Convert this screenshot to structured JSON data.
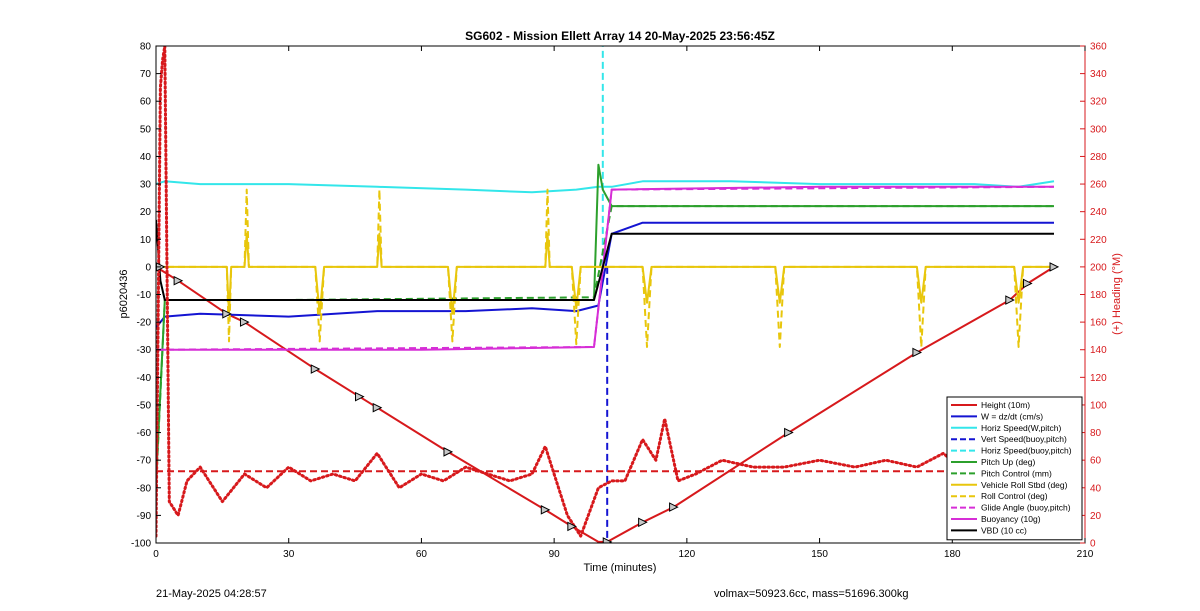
{
  "chart_data": {
    "type": "line",
    "title": "SG602 - Mission Ellett Array 14 20-May-2025 23:56:45Z",
    "xlabel": "Time (minutes)",
    "ylabel": "p6020436",
    "y2label": "(+) Heading (°M)",
    "xlim": [
      0,
      210
    ],
    "ylim": [
      -100,
      80
    ],
    "y2lim": [
      0,
      360
    ],
    "xticks": [
      0,
      30,
      60,
      90,
      120,
      150,
      180,
      210
    ],
    "yticks": [
      80,
      70,
      60,
      50,
      40,
      30,
      20,
      10,
      0,
      -10,
      -20,
      -30,
      -40,
      -50,
      -60,
      -70,
      -80,
      -90,
      -100
    ],
    "y2ticks": [
      360,
      340,
      320,
      300,
      280,
      260,
      240,
      220,
      200,
      180,
      160,
      140,
      120,
      100,
      80,
      60,
      40,
      20,
      0
    ],
    "grid": false,
    "legend_position": "bottom-right",
    "series": [
      {
        "name": "Height (10m)",
        "color": "#d7191c",
        "style": "solid",
        "x": [
          0,
          5,
          16,
          20,
          36,
          46,
          50,
          66,
          88,
          94,
          100,
          101,
          102,
          110,
          117,
          143,
          172,
          193,
          197,
          203
        ],
        "y": [
          0,
          -5,
          -17,
          -20,
          -37,
          -47,
          -51,
          -67,
          -88,
          -94,
          -99.6,
          -99.6,
          -99.6,
          -92.5,
          -87,
          -60,
          -31,
          -12,
          -6,
          0
        ]
      },
      {
        "name": "W = dz/dt (cm/s)",
        "color": "#1414d2",
        "style": "solid",
        "x": [
          0,
          2,
          10,
          30,
          50,
          70,
          85,
          95,
          100,
          103,
          110,
          130,
          150,
          170,
          185,
          195,
          203
        ],
        "y": [
          -22,
          -18,
          -17,
          -18,
          -16,
          -16,
          -15,
          -16,
          -14,
          12,
          16,
          16,
          16,
          16,
          16,
          16,
          16
        ]
      },
      {
        "name": "Horiz Speed(W,pitch)",
        "color": "#33e6ea",
        "style": "solid",
        "x": [
          0,
          2,
          10,
          30,
          50,
          70,
          85,
          95,
          100,
          103,
          110,
          130,
          150,
          170,
          185,
          195,
          203
        ],
        "y": [
          30,
          31,
          30,
          30,
          29,
          28,
          27,
          28,
          29,
          29,
          31,
          31,
          30,
          30,
          30,
          29,
          31
        ]
      },
      {
        "name": "Vert Speed(buoy,pitch)",
        "color": "#1414d2",
        "style": "dashed",
        "x": [
          102,
          102
        ],
        "y": [
          0,
          -100
        ]
      },
      {
        "name": "Horiz Speed(buoy,pitch)",
        "color": "#33e6ea",
        "style": "dashed",
        "x": [
          101,
          101
        ],
        "y": [
          0,
          80
        ]
      },
      {
        "name": "Pitch Up (deg)",
        "color": "#2ca02c",
        "style": "solid",
        "x": [
          0,
          2,
          10,
          30,
          60,
          90,
          99,
          100,
          101,
          103,
          120,
          160,
          203
        ],
        "y": [
          -78,
          -12,
          -12,
          -12,
          -12,
          -12,
          -12,
          37,
          28,
          22,
          22,
          22,
          22
        ]
      },
      {
        "name": "Pitch Control (mm)",
        "color": "#2ca02c",
        "style": "dashed",
        "x": [
          0,
          2,
          30,
          99,
          103,
          203
        ],
        "y": [
          -80,
          -12,
          -12,
          -11,
          22,
          22
        ]
      },
      {
        "name": "Vehicle Roll Stbd (deg)",
        "color": "#e8c60c",
        "style": "solid",
        "x": [
          0,
          16,
          16.5,
          17,
          20,
          20.5,
          21,
          36,
          37,
          38,
          50,
          50.5,
          51,
          66,
          67,
          68,
          88,
          88.5,
          89,
          94,
          95,
          96,
          100,
          103,
          110,
          111,
          112,
          140,
          141,
          142,
          172,
          173,
          174,
          194,
          195,
          196,
          203
        ],
        "y": [
          0,
          0,
          -17,
          0,
          0,
          12,
          0,
          0,
          -17,
          0,
          0,
          12,
          0,
          0,
          -17,
          0,
          0,
          12,
          0,
          0,
          -15,
          0,
          0,
          0,
          0,
          -13,
          0,
          0,
          -13,
          0,
          0,
          -13,
          0,
          0,
          -13,
          0,
          0
        ]
      },
      {
        "name": "Roll Control (deg)",
        "color": "#e8c60c",
        "style": "dashed",
        "x": [
          0,
          16,
          16.5,
          17,
          20,
          20.5,
          21,
          36,
          37,
          38,
          50,
          50.5,
          51,
          66,
          67,
          68,
          88,
          88.5,
          89,
          94,
          95,
          96,
          103,
          110,
          111,
          112,
          140,
          141,
          142,
          172,
          173,
          174,
          194,
          195,
          196,
          203
        ],
        "y": [
          0,
          0,
          -27,
          0,
          0,
          28,
          0,
          0,
          -27,
          0,
          0,
          28,
          0,
          0,
          -27,
          0,
          0,
          28,
          0,
          0,
          -28,
          0,
          0,
          0,
          -29,
          0,
          0,
          -29,
          0,
          0,
          -29,
          0,
          0,
          -29,
          0,
          0
        ]
      },
      {
        "name": "Glide Angle (buoy,pitch)",
        "color": "#d62ed6",
        "style": "dashed",
        "x": [
          0,
          2,
          99,
          103,
          203
        ],
        "y": [
          -30,
          -30,
          -29,
          28,
          29
        ]
      },
      {
        "name": "Buoyancy (10g)",
        "color": "#d62ed6",
        "style": "solid",
        "x": [
          0,
          2,
          30,
          60,
          99,
          103,
          150,
          203
        ],
        "y": [
          -30,
          -30,
          -30,
          -30,
          -29,
          28,
          29,
          29
        ]
      },
      {
        "name": "VBD (10 cc)",
        "color": "#000000",
        "style": "solid",
        "x": [
          0,
          1,
          2,
          99,
          103,
          203
        ],
        "y": [
          17,
          -5,
          -12,
          -12,
          12,
          12
        ]
      },
      {
        "name": "Heading",
        "color": "#d7191c",
        "style": "dotted",
        "axis": "right",
        "x": [
          0,
          1,
          1.5,
          2,
          3,
          5,
          7,
          10,
          13,
          15,
          20,
          25,
          30,
          35,
          40,
          45,
          50,
          55,
          60,
          65,
          70,
          75,
          80,
          85,
          88,
          90,
          93,
          96,
          100,
          103,
          106,
          110,
          113,
          115,
          118,
          122,
          128,
          135,
          142,
          150,
          158,
          165,
          172,
          178,
          185,
          190,
          195,
          198,
          200,
          203
        ],
        "y": [
          5,
          330,
          350,
          360,
          30,
          20,
          45,
          55,
          40,
          30,
          50,
          40,
          55,
          45,
          50,
          45,
          65,
          40,
          50,
          45,
          55,
          50,
          45,
          50,
          70,
          50,
          20,
          5,
          40,
          45,
          45,
          75,
          60,
          90,
          45,
          50,
          60,
          55,
          55,
          60,
          55,
          60,
          55,
          65,
          45,
          50,
          40,
          80,
          105,
          5
        ]
      },
      {
        "name": "Heading target",
        "color": "#d7191c",
        "style": "dashed",
        "axis": "right",
        "x": [
          0,
          203
        ],
        "y": [
          52,
          52
        ]
      }
    ],
    "markers": {
      "x": [
        1,
        5,
        16,
        20,
        36,
        46,
        50,
        66,
        88,
        94,
        102,
        110,
        117,
        143,
        172,
        193,
        197,
        203
      ],
      "y": [
        0,
        -5,
        -17,
        -20,
        -37,
        -47,
        -51,
        -67,
        -88,
        -94,
        -99.6,
        -92.5,
        -87,
        -60,
        -31,
        -12,
        -6,
        0
      ]
    },
    "legend": [
      {
        "label": "Height (10m)",
        "color": "#d7191c",
        "style": "solid"
      },
      {
        "label": "W = dz/dt (cm/s)",
        "color": "#1414d2",
        "style": "solid"
      },
      {
        "label": "Horiz Speed(W,pitch)",
        "color": "#33e6ea",
        "style": "solid"
      },
      {
        "label": "Vert Speed(buoy,pitch)",
        "color": "#1414d2",
        "style": "dashed"
      },
      {
        "label": "Horiz Speed(buoy,pitch)",
        "color": "#33e6ea",
        "style": "dashed"
      },
      {
        "label": "Pitch Up (deg)",
        "color": "#2ca02c",
        "style": "solid"
      },
      {
        "label": "Pitch Control (mm)",
        "color": "#2ca02c",
        "style": "dashed"
      },
      {
        "label": "Vehicle Roll Stbd (deg)",
        "color": "#e8c60c",
        "style": "solid"
      },
      {
        "label": "Roll Control (deg)",
        "color": "#e8c60c",
        "style": "dashed"
      },
      {
        "label": "Glide Angle (buoy,pitch)",
        "color": "#d62ed6",
        "style": "dashed"
      },
      {
        "label": "Buoyancy (10g)",
        "color": "#d62ed6",
        "style": "solid"
      },
      {
        "label": "VBD (10 cc)",
        "color": "#000000",
        "style": "solid"
      }
    ]
  },
  "footer": {
    "timestamp": "21-May-2025 04:28:57",
    "info": "volmax=50923.6cc, mass=51696.300kg"
  },
  "colors": {
    "axis": "#000000",
    "right_axis": "#d7191c"
  }
}
